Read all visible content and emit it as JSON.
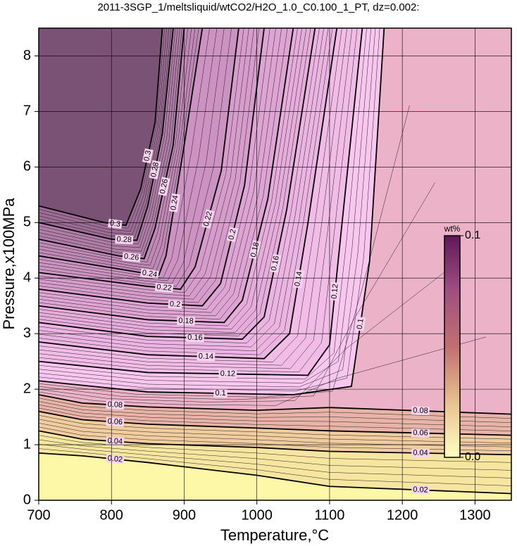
{
  "chart_data": {
    "type": "contour",
    "title": "2011-3SGP_1/meltsliquid/wtCO2/H2O_1.0_C0.100_1_PT, dz=0.002:",
    "xlabel": "Temperature,°C",
    "ylabel": "Pressure,x100MPa",
    "xlim": [
      700,
      1350
    ],
    "ylim": [
      0,
      8.5
    ],
    "xticks": [
      700,
      800,
      900,
      1000,
      1100,
      1200,
      1300
    ],
    "yticks": [
      0,
      1,
      2,
      3,
      4,
      5,
      6,
      7,
      8
    ],
    "grid": true,
    "base_color": "#fdf8a8",
    "contours": [
      {
        "level": 0.02,
        "color": "#f7e6a0",
        "x": [
          700,
          760,
          850,
          1000,
          1100,
          1350
        ],
        "y": [
          0.85,
          0.8,
          0.68,
          0.45,
          0.25,
          0.12
        ]
      },
      {
        "level": 0.04,
        "color": "#f0cc9e",
        "x": [
          700,
          760,
          850,
          1000,
          1100,
          1350
        ],
        "y": [
          1.25,
          1.1,
          1.02,
          0.95,
          0.88,
          0.82
        ]
      },
      {
        "level": 0.06,
        "color": "#e8b4a8",
        "x": [
          700,
          760,
          850,
          1000,
          1100,
          1350
        ],
        "y": [
          1.6,
          1.45,
          1.37,
          1.3,
          1.25,
          1.17
        ]
      },
      {
        "level": 0.08,
        "color": "#ebb2c8",
        "x": [
          700,
          760,
          850,
          1000,
          1100,
          1350
        ],
        "y": [
          1.9,
          1.75,
          1.68,
          1.62,
          1.67,
          1.55
        ]
      },
      {
        "level": 0.1,
        "color": "#f8c6ee",
        "x": [
          700,
          850,
          1050,
          1130,
          1155,
          1175
        ],
        "y": [
          2.15,
          1.95,
          1.9,
          2.05,
          4.3,
          8.5
        ]
      },
      {
        "level": 0.12,
        "color": "#f2bce8",
        "x": [
          700,
          850,
          1070,
          1100,
          1115,
          1145
        ],
        "y": [
          2.5,
          2.3,
          2.25,
          2.8,
          4.72,
          8.5
        ]
      },
      {
        "level": 0.14,
        "color": "#ecb4e2",
        "x": [
          700,
          850,
          1010,
          1045,
          1070,
          1110
        ],
        "y": [
          2.85,
          2.62,
          2.55,
          3.0,
          4.97,
          8.5
        ]
      },
      {
        "level": 0.16,
        "color": "#e6acdc",
        "x": [
          700,
          850,
          980,
          1010,
          1041,
          1080
        ],
        "y": [
          3.2,
          2.95,
          2.9,
          3.3,
          5.23,
          8.5
        ]
      },
      {
        "level": 0.18,
        "color": "#dea4d4",
        "x": [
          700,
          850,
          955,
          980,
          1015,
          1050
        ],
        "y": [
          3.5,
          3.25,
          3.2,
          3.6,
          5.42,
          8.5
        ]
      },
      {
        "level": 0.2,
        "color": "#d69ccc",
        "x": [
          700,
          850,
          925,
          950,
          983,
          1010
        ],
        "y": [
          3.8,
          3.55,
          3.5,
          3.9,
          5.67,
          8.5
        ]
      },
      {
        "level": 0.22,
        "color": "#cc92c2",
        "x": [
          700,
          850,
          895,
          915,
          951,
          975
        ],
        "y": [
          4.1,
          3.85,
          3.8,
          4.2,
          5.93,
          8.5
        ]
      },
      {
        "level": 0.24,
        "color": "#c088b6",
        "x": [
          700,
          840,
          865,
          875,
          899,
          925
        ],
        "y": [
          4.4,
          4.1,
          4.05,
          4.4,
          6.31,
          8.5
        ]
      },
      {
        "level": 0.26,
        "color": "#b07ca8",
        "x": [
          700,
          810,
          845,
          860,
          885,
          900
        ],
        "y": [
          4.7,
          4.4,
          4.35,
          4.9,
          6.4,
          8.5
        ]
      },
      {
        "level": 0.28,
        "color": "#9c6c96",
        "x": [
          700,
          800,
          835,
          850,
          870,
          885
        ],
        "y": [
          5.0,
          4.7,
          4.68,
          5.3,
          6.6,
          8.5
        ]
      },
      {
        "level": 0.3,
        "color": "#7a5276",
        "x": [
          700,
          790,
          820,
          840,
          860,
          870
        ],
        "y": [
          5.3,
          5.0,
          4.95,
          5.6,
          6.8,
          8.5
        ]
      }
    ],
    "colorbar": {
      "label": "wt%",
      "lim": [
        0,
        0.1
      ],
      "colors": [
        "#ffffc0",
        "#e8c090",
        "#c07070",
        "#a05080",
        "#601858"
      ],
      "ticks": [
        {
          "value": 0,
          "label": "0.0"
        },
        {
          "value": 0.1,
          "label": "0.1"
        }
      ]
    }
  }
}
